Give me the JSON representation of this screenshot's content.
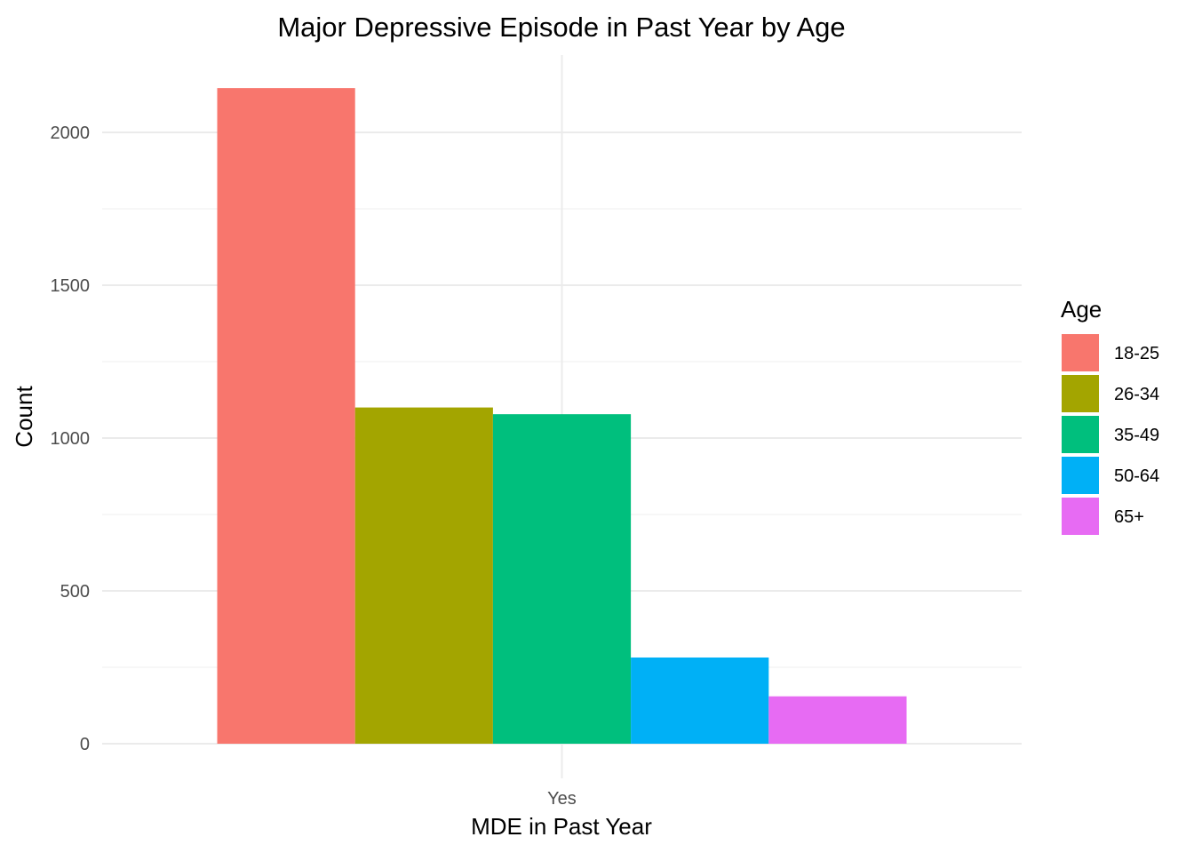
{
  "chart_data": {
    "type": "bar",
    "title": "Major Depressive Episode in Past Year by Age",
    "xlabel": "MDE in Past Year",
    "ylabel": "Count",
    "categories": [
      "Yes"
    ],
    "ylim": [
      0,
      2250
    ],
    "yticks": [
      0,
      500,
      1000,
      1500,
      2000
    ],
    "grid": true,
    "legend": {
      "title": "Age",
      "placement": "right"
    },
    "series": [
      {
        "name": "18-25",
        "values": [
          2145
        ],
        "color": "#F8766D"
      },
      {
        "name": "26-34",
        "values": [
          1100
        ],
        "color": "#A3A500"
      },
      {
        "name": "35-49",
        "values": [
          1078
        ],
        "color": "#00BF7D"
      },
      {
        "name": "50-64",
        "values": [
          282
        ],
        "color": "#00B0F6"
      },
      {
        "name": "65+",
        "values": [
          155
        ],
        "color": "#E76BF3"
      }
    ]
  }
}
